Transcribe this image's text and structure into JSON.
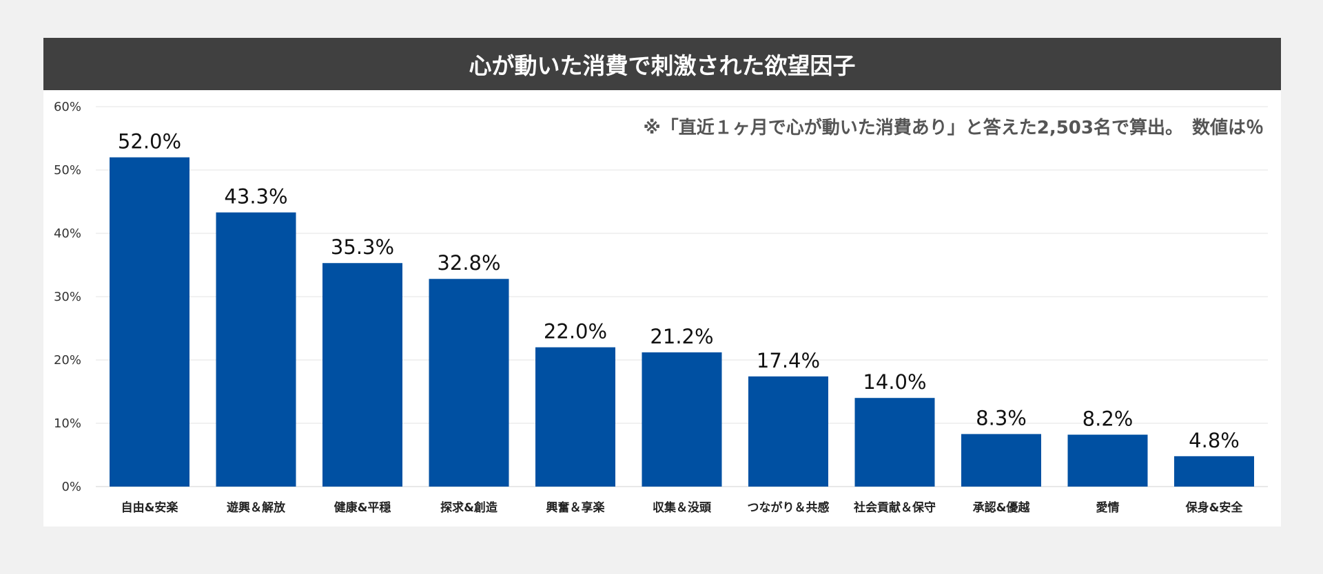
{
  "title": "心が動いた消費で刺激された欲望因子",
  "note": "※「直近１ヶ月で心が動いた消費あり」と答えた2,503名で算出。　数値は％",
  "colors": {
    "title_bg": "#404040",
    "bar": "#0050a2",
    "panel_bg": "#ffffff",
    "page_bg": "#f1f1f1"
  },
  "chart_data": {
    "type": "bar",
    "categories": [
      "自由&安楽",
      "遊興＆解放",
      "健康&平穏",
      "探求&創造",
      "興奮＆享楽",
      "収集＆没頭",
      "つながり＆共感",
      "社会貢献＆保守",
      "承認&優越",
      "愛情",
      "保身&安全"
    ],
    "values": [
      52.0,
      43.3,
      35.3,
      32.8,
      22.0,
      21.2,
      17.4,
      14.0,
      8.3,
      8.2,
      4.8
    ],
    "data_labels": [
      "52.0%",
      "43.3%",
      "35.3%",
      "32.8%",
      "22.0%",
      "21.2%",
      "17.4%",
      "14.0%",
      "8.3%",
      "8.2%",
      "4.8%"
    ],
    "yticks": [
      "0%",
      "10%",
      "20%",
      "30%",
      "40%",
      "50%",
      "60%"
    ],
    "ytick_values": [
      0,
      10,
      20,
      30,
      40,
      50,
      60
    ],
    "ylim": [
      0,
      60
    ],
    "grid": true,
    "legend": "none"
  }
}
